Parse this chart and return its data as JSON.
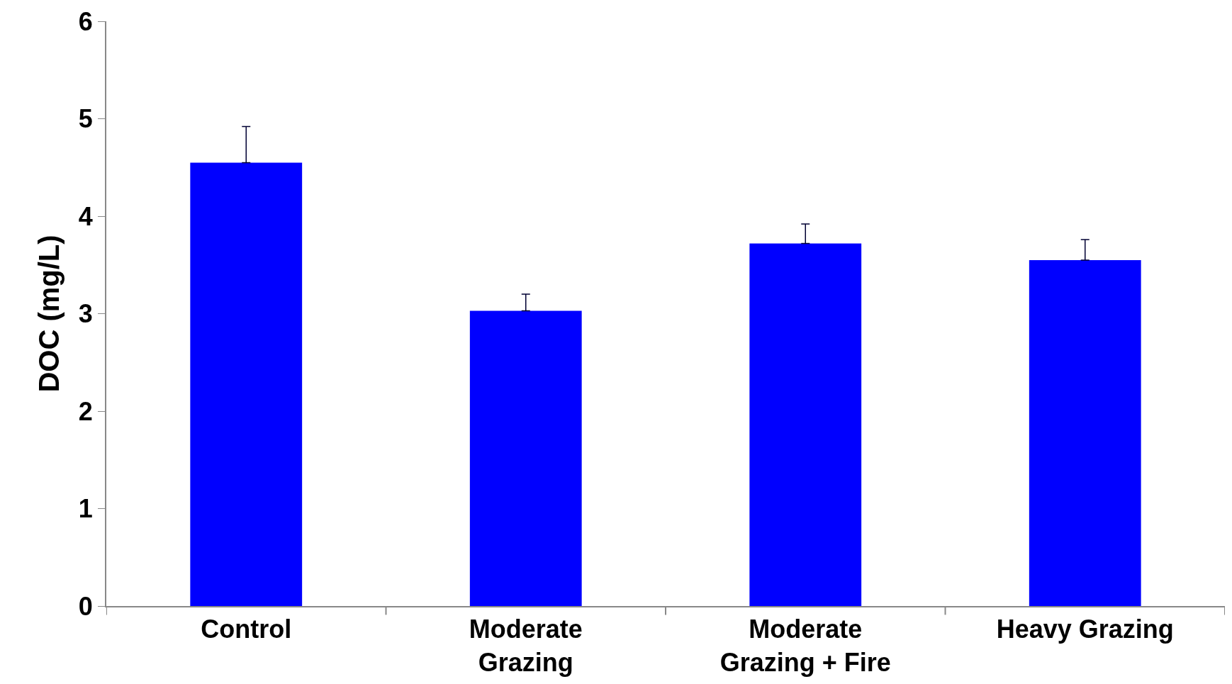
{
  "chart_data": {
    "type": "bar",
    "ylabel": "DOC (mg/L)",
    "categories": [
      "Control",
      "Moderate Grazing",
      "Moderate Grazing + Fire",
      "Heavy Grazing"
    ],
    "values": [
      4.55,
      3.03,
      3.72,
      3.55
    ],
    "errors": [
      [
        4.55,
        4.92
      ],
      [
        3.03,
        3.2
      ],
      [
        3.72,
        3.92
      ],
      [
        3.55,
        3.76
      ]
    ],
    "color": "#0000ff",
    "ylim": [
      0,
      6
    ],
    "yticks": [
      0,
      1,
      2,
      3,
      4,
      5,
      6
    ]
  }
}
